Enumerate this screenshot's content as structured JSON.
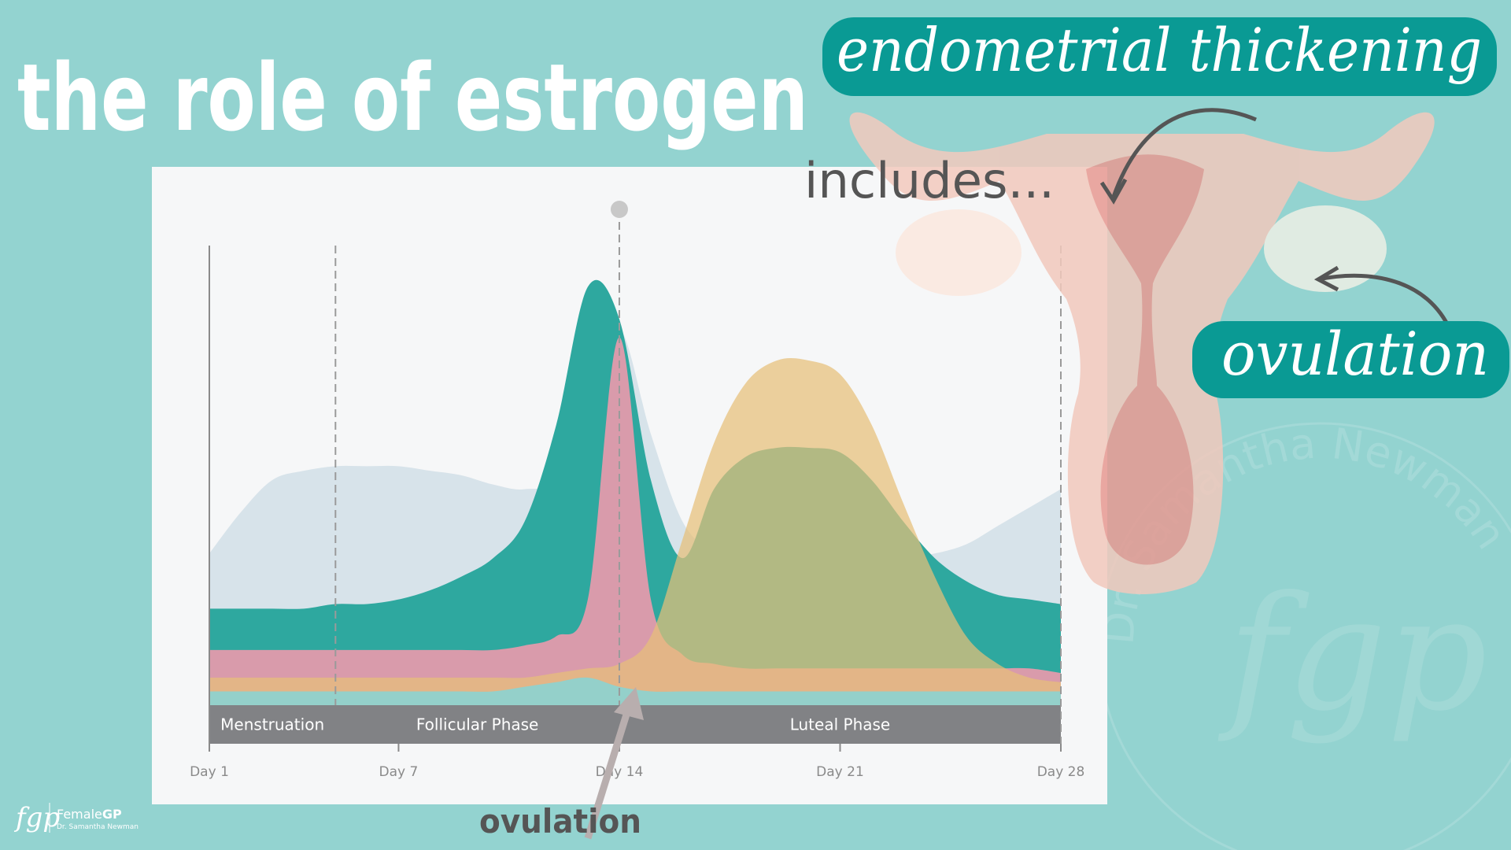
{
  "title": "the role of estrogen",
  "annotations": {
    "includes": "includes...",
    "endometrial": "endometrial thickening",
    "ovulation_right": "ovulation",
    "ovulation_bottom": "ovulation"
  },
  "logo": {
    "mark": "fgp",
    "brand": "Female",
    "brand_bold": "GP",
    "author": "Dr. Samantha Newman"
  },
  "watermark": {
    "text": "Dr. Samantha Newman",
    "mark": "fgp"
  },
  "chart_data": {
    "type": "area",
    "x": [
      1,
      2,
      3,
      4,
      5,
      6,
      7,
      8,
      9,
      10,
      11,
      12,
      13,
      14,
      15,
      16,
      17,
      18,
      19,
      20,
      21,
      22,
      23,
      24,
      25,
      26,
      27,
      28
    ],
    "xlim": [
      1,
      28
    ],
    "xticks": [
      {
        "value": 1,
        "label": "Day 1"
      },
      {
        "value": 7,
        "label": "Day 7"
      },
      {
        "value": 14,
        "label": "Day 14"
      },
      {
        "value": 21,
        "label": "Day 21"
      },
      {
        "value": 28,
        "label": "Day 28"
      }
    ],
    "ylim": [
      0,
      100
    ],
    "phases": [
      {
        "label": "Menstruation",
        "start": 1,
        "end": 5
      },
      {
        "label": "Follicular Phase",
        "start": 5,
        "end": 14
      },
      {
        "label": "Luteal Phase",
        "start": 14,
        "end": 28
      }
    ],
    "series": [
      {
        "color": "#d4e0e8",
        "values": [
          33,
          42,
          49,
          51,
          52,
          52,
          52,
          51,
          50,
          48,
          47,
          50,
          70,
          82,
          59,
          40,
          33,
          30,
          29,
          29,
          30,
          31,
          32,
          33,
          35,
          39,
          43,
          47
        ]
      },
      {
        "color": "#2ea89f",
        "values": [
          21,
          21,
          21,
          21,
          22,
          22,
          23,
          25,
          28,
          32,
          40,
          61,
          91,
          84,
          49,
          32,
          47,
          54,
          56,
          56,
          55,
          49,
          40,
          32,
          27,
          24,
          23,
          22
        ]
      },
      {
        "color": "#e89aab",
        "values": [
          12,
          12,
          12,
          12,
          12,
          12,
          12,
          12,
          12,
          12,
          13,
          15,
          23,
          80,
          23,
          11,
          9,
          8,
          8,
          8,
          8,
          8,
          8,
          8,
          8,
          8,
          8,
          7
        ]
      },
      {
        "color": "#e6bf78",
        "values": [
          6,
          6,
          6,
          6,
          6,
          6,
          6,
          6,
          6,
          6,
          6,
          7,
          8,
          9,
          15,
          36,
          57,
          70,
          75,
          75,
          72,
          61,
          44,
          28,
          15,
          9,
          6,
          5
        ]
      },
      {
        "color": "#8fd2cd",
        "values": [
          3,
          3,
          3,
          3,
          3,
          3,
          3,
          3,
          3,
          3,
          4,
          5,
          6,
          4,
          3,
          3,
          3,
          3,
          3,
          3,
          3,
          3,
          3,
          3,
          3,
          3,
          3,
          3
        ]
      }
    ]
  }
}
